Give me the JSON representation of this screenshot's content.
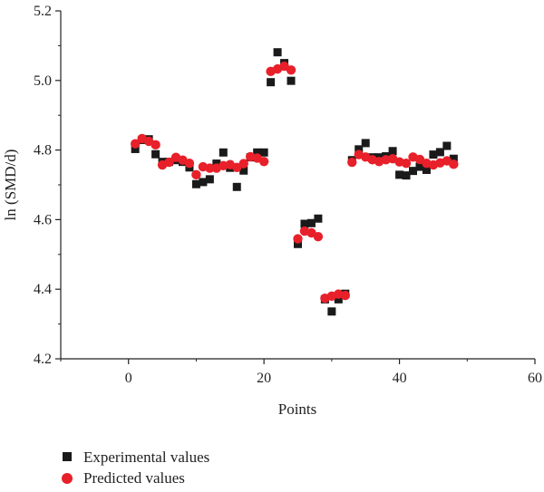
{
  "chart_data": {
    "type": "scatter",
    "title": "",
    "xlabel": "Points",
    "ylabel": "ln (SMD/d)",
    "xlim": [
      -10,
      60
    ],
    "ylim": [
      4.2,
      5.2
    ],
    "xticks": [
      0,
      20,
      40,
      60
    ],
    "yticks": [
      4.2,
      4.4,
      4.6,
      4.8,
      5.0,
      5.2
    ],
    "xtick_labels": [
      "0",
      "20",
      "40",
      "60"
    ],
    "ytick_labels": [
      "4.2",
      "4.4",
      "4.6",
      "4.8",
      "5.0",
      "5.2"
    ],
    "grid": false,
    "legend_position": "bottom-left",
    "series": [
      {
        "name": "Experimental values",
        "marker": "square",
        "color": "#1a1a1a",
        "points": [
          [
            1,
            4.803
          ],
          [
            2,
            4.829
          ],
          [
            3,
            4.831
          ],
          [
            4,
            4.788
          ],
          [
            5,
            4.766
          ],
          [
            6,
            4.766
          ],
          [
            7,
            4.771
          ],
          [
            8,
            4.766
          ],
          [
            9,
            4.75
          ],
          [
            10,
            4.702
          ],
          [
            11,
            4.708
          ],
          [
            12,
            4.716
          ],
          [
            13,
            4.761
          ],
          [
            14,
            4.793
          ],
          [
            15,
            4.749
          ],
          [
            16,
            4.694
          ],
          [
            17,
            4.741
          ],
          [
            18,
            4.779
          ],
          [
            19,
            4.793
          ],
          [
            20,
            4.793
          ],
          [
            21,
            4.995
          ],
          [
            22,
            5.081
          ],
          [
            23,
            5.05
          ],
          [
            24,
            4.999
          ],
          [
            25,
            4.53
          ],
          [
            26,
            4.588
          ],
          [
            27,
            4.59
          ],
          [
            28,
            4.603
          ],
          [
            29,
            4.371
          ],
          [
            30,
            4.336
          ],
          [
            31,
            4.371
          ],
          [
            32,
            4.387
          ],
          [
            33,
            4.771
          ],
          [
            34,
            4.802
          ],
          [
            35,
            4.82
          ],
          [
            36,
            4.779
          ],
          [
            37,
            4.779
          ],
          [
            38,
            4.782
          ],
          [
            39,
            4.797
          ],
          [
            40,
            4.729
          ],
          [
            41,
            4.727
          ],
          [
            42,
            4.74
          ],
          [
            43,
            4.752
          ],
          [
            44,
            4.743
          ],
          [
            45,
            4.787
          ],
          [
            46,
            4.794
          ],
          [
            47,
            4.812
          ],
          [
            48,
            4.775
          ]
        ]
      },
      {
        "name": "Predicted values",
        "marker": "circle",
        "color": "#e8202a",
        "points": [
          [
            1,
            4.818
          ],
          [
            2,
            4.833
          ],
          [
            3,
            4.825
          ],
          [
            4,
            4.815
          ],
          [
            5,
            4.757
          ],
          [
            6,
            4.765
          ],
          [
            7,
            4.779
          ],
          [
            8,
            4.771
          ],
          [
            9,
            4.762
          ],
          [
            10,
            4.729
          ],
          [
            11,
            4.752
          ],
          [
            12,
            4.748
          ],
          [
            13,
            4.748
          ],
          [
            14,
            4.755
          ],
          [
            15,
            4.758
          ],
          [
            16,
            4.75
          ],
          [
            17,
            4.761
          ],
          [
            18,
            4.781
          ],
          [
            19,
            4.777
          ],
          [
            20,
            4.767
          ],
          [
            21,
            5.026
          ],
          [
            22,
            5.033
          ],
          [
            23,
            5.041
          ],
          [
            24,
            5.03
          ],
          [
            25,
            4.545
          ],
          [
            26,
            4.567
          ],
          [
            27,
            4.562
          ],
          [
            28,
            4.551
          ],
          [
            29,
            4.374
          ],
          [
            30,
            4.38
          ],
          [
            31,
            4.386
          ],
          [
            32,
            4.382
          ],
          [
            33,
            4.765
          ],
          [
            34,
            4.787
          ],
          [
            35,
            4.78
          ],
          [
            36,
            4.772
          ],
          [
            37,
            4.767
          ],
          [
            38,
            4.772
          ],
          [
            39,
            4.775
          ],
          [
            40,
            4.766
          ],
          [
            41,
            4.762
          ],
          [
            42,
            4.78
          ],
          [
            43,
            4.773
          ],
          [
            44,
            4.762
          ],
          [
            45,
            4.757
          ],
          [
            46,
            4.763
          ],
          [
            47,
            4.769
          ],
          [
            48,
            4.759
          ]
        ]
      }
    ]
  }
}
